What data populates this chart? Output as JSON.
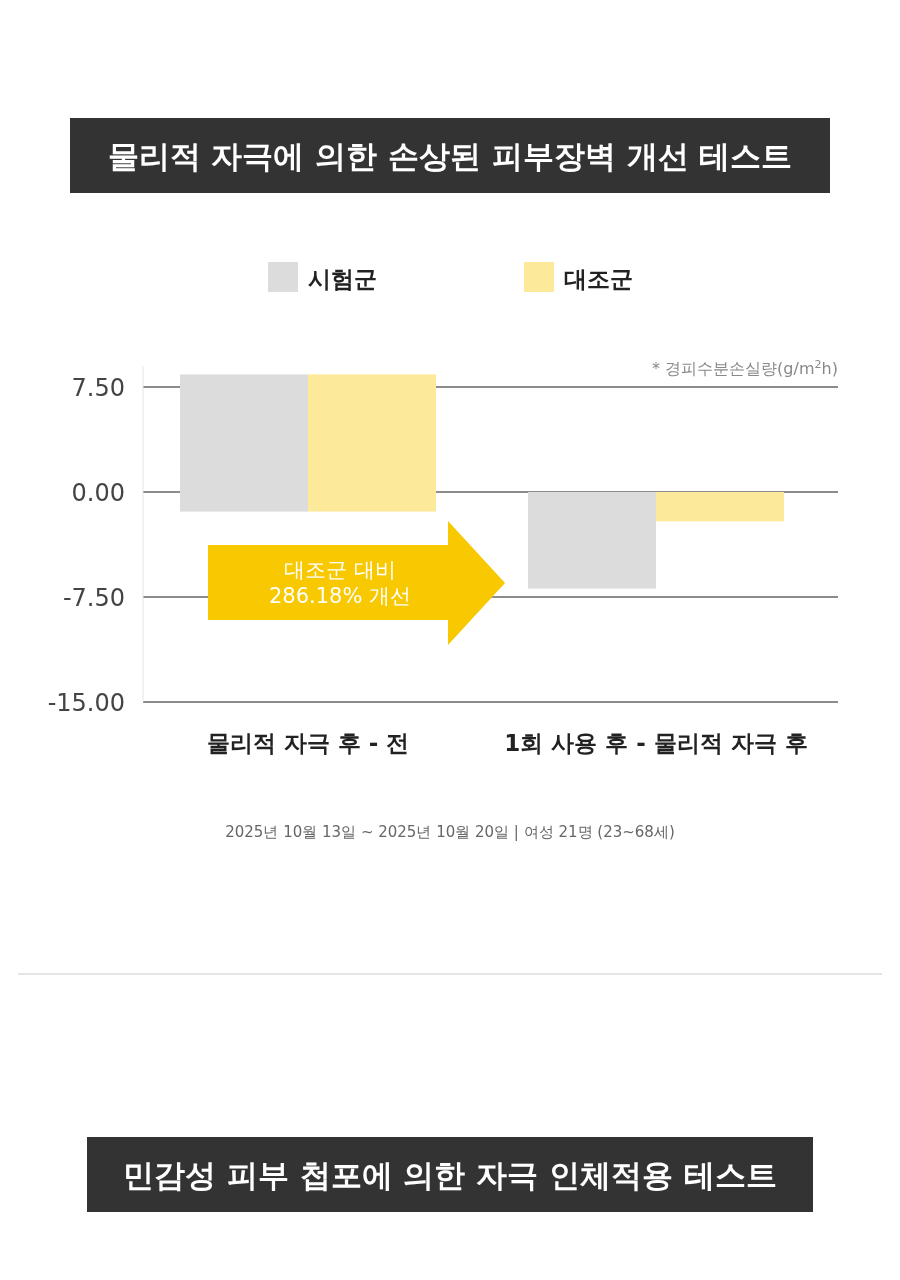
{
  "chart_data": {
    "type": "bar",
    "title": "물리적 자극에 의한 손상된 피부장벽 개선 테스트",
    "categories": [
      "물리적 자극 후 - 전",
      "1회 사용 후 - 물리적 자극 후"
    ],
    "series": [
      {
        "name": "시험군",
        "color": "#dcdcdc",
        "values": [
          9.8,
          -6.9
        ],
        "base": [
          -1.4,
          0
        ]
      },
      {
        "name": "대조군",
        "color": "#fde99a",
        "values": [
          9.8,
          -2.1
        ],
        "base": [
          -1.4,
          0
        ]
      }
    ],
    "ylabel": "* 경피수분손실량(g/m$^{2}$h)",
    "ylim": [
      -15,
      9
    ],
    "yticks": [
      {
        "value": 7.5,
        "label": "7.50"
      },
      {
        "value": 0,
        "label": "0.00"
      },
      {
        "value": -7.5,
        "label": "-7.50"
      },
      {
        "value": -15,
        "label": "-15.00"
      }
    ],
    "grid": "y",
    "legend": "top",
    "annotations": [
      "대조군 대비\n286.18% 개선",
      "2025년 10월 13일 ~ 2025년 10월 20일 | 여성 21명 (23~68세)",
      "민감성 피부 첩포에 의한 자극 인체적용 테스트"
    ]
  }
}
